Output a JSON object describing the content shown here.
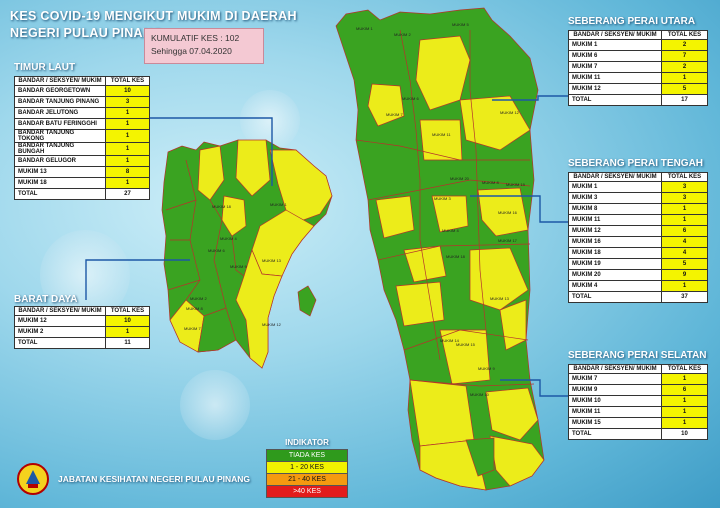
{
  "title": {
    "line1": "KES COVID-19 MENGIKUT MUKIM DI DAERAH",
    "line2": "NEGERI PULAU PINANG"
  },
  "kumulatif": {
    "line1": "KUMULATIF KES : 102",
    "line2": "Sehingga 07.04.2020"
  },
  "header_cols": {
    "area": "BANDAR / SEKSYEN/ MUKIM",
    "total": "TOTAL KES"
  },
  "timur_laut": {
    "title": "TIMUR LAUT",
    "rows": [
      {
        "name": "BANDAR GEORGETOWN",
        "value": "10"
      },
      {
        "name": "BANDAR TANJUNG PINANG",
        "value": "3"
      },
      {
        "name": "BANDAR JELUTONG",
        "value": "1"
      },
      {
        "name": "BANDAR BATU FERINGGHI",
        "value": "1"
      },
      {
        "name": "BANDAR TANJUNG TOKONG",
        "value": "1"
      },
      {
        "name": "BANDAR TANJUNG BUNGAH",
        "value": "1"
      },
      {
        "name": "BANDAR GELUGOR",
        "value": "1"
      },
      {
        "name": "MUKIM 13",
        "value": "8"
      },
      {
        "name": "MUKIM 18",
        "value": "1"
      }
    ],
    "total_label": "TOTAL",
    "total": "27"
  },
  "barat_daya": {
    "title": "BARAT DAYA",
    "rows": [
      {
        "name": "MUKIM 12",
        "value": "10"
      },
      {
        "name": "MUKIM 2",
        "value": "1"
      }
    ],
    "total_label": "TOTAL",
    "total": "11"
  },
  "sp_utara": {
    "title": "SEBERANG PERAI UTARA",
    "rows": [
      {
        "name": "MUKIM 1",
        "value": "2"
      },
      {
        "name": "MUKIM 6",
        "value": "7"
      },
      {
        "name": "MUKIM 7",
        "value": "2"
      },
      {
        "name": "MUKIM 11",
        "value": "1"
      },
      {
        "name": "MUKIM 12",
        "value": "5"
      }
    ],
    "total_label": "TOTAL",
    "total": "17"
  },
  "sp_tengah": {
    "title": "SEBERANG PERAI TENGAH",
    "rows": [
      {
        "name": "MUKIM 1",
        "value": "3"
      },
      {
        "name": "MUKIM 3",
        "value": "3"
      },
      {
        "name": "MUKIM 8",
        "value": "1"
      },
      {
        "name": "MUKIM 11",
        "value": "1"
      },
      {
        "name": "MUKIM 12",
        "value": "6"
      },
      {
        "name": "MUKIM 16",
        "value": "4"
      },
      {
        "name": "MUKIM 18",
        "value": "4"
      },
      {
        "name": "MUKIM 19",
        "value": "5"
      },
      {
        "name": "MUKIM 20",
        "value": "9"
      },
      {
        "name": "MUKIM 4",
        "value": "1"
      }
    ],
    "total_label": "TOTAL",
    "total": "37"
  },
  "sp_selatan": {
    "title": "SEBERANG PERAI SELATAN",
    "rows": [
      {
        "name": "MUKIM 7",
        "value": "1"
      },
      {
        "name": "MUKIM 9",
        "value": "6"
      },
      {
        "name": "MUKIM 10",
        "value": "1"
      },
      {
        "name": "MUKIM 11",
        "value": "1"
      },
      {
        "name": "MUKIM 15",
        "value": "1"
      }
    ],
    "total_label": "TOTAL",
    "total": "10"
  },
  "legend": {
    "title": "INDIKATOR",
    "items": [
      {
        "label": "TIADA KES",
        "color": "#2f9a1c"
      },
      {
        "label": "1 - 20 KES",
        "color": "#f2f200"
      },
      {
        "label": "21 - 40 KES",
        "color": "#f59a10"
      },
      {
        "label": ">40 KES",
        "color": "#e21c1c"
      }
    ]
  },
  "footer": {
    "agency": "JABATAN KESIHATAN NEGERI PULAU PINANG"
  },
  "colors": {
    "green": "#3aa321",
    "yellow": "#ecec1a",
    "border": "#b5332b",
    "line": "#1d58a6"
  },
  "map_labels": {
    "island": [
      "MUKIM 1",
      "MUKIM 2",
      "MUKIM 12",
      "MUKIM 13",
      "MUKIM 18",
      "MUKIM 7",
      "MUKIM 8",
      "MUKIM 9",
      "MUKIM 6",
      "MUKIM 4"
    ],
    "mainland": [
      "MUKIM 1",
      "MUKIM 2",
      "MUKIM 3",
      "MUKIM 4",
      "MUKIM 5",
      "MUKIM 6",
      "MUKIM 7",
      "MUKIM 8",
      "MUKIM 9",
      "MUKIM 10",
      "MUKIM 11",
      "MUKIM 12",
      "MUKIM 13",
      "MUKIM 14",
      "MUKIM 15",
      "MUKIM 16",
      "MUKIM 17",
      "MUKIM 18",
      "MUKIM 19",
      "MUKIM 20"
    ]
  }
}
